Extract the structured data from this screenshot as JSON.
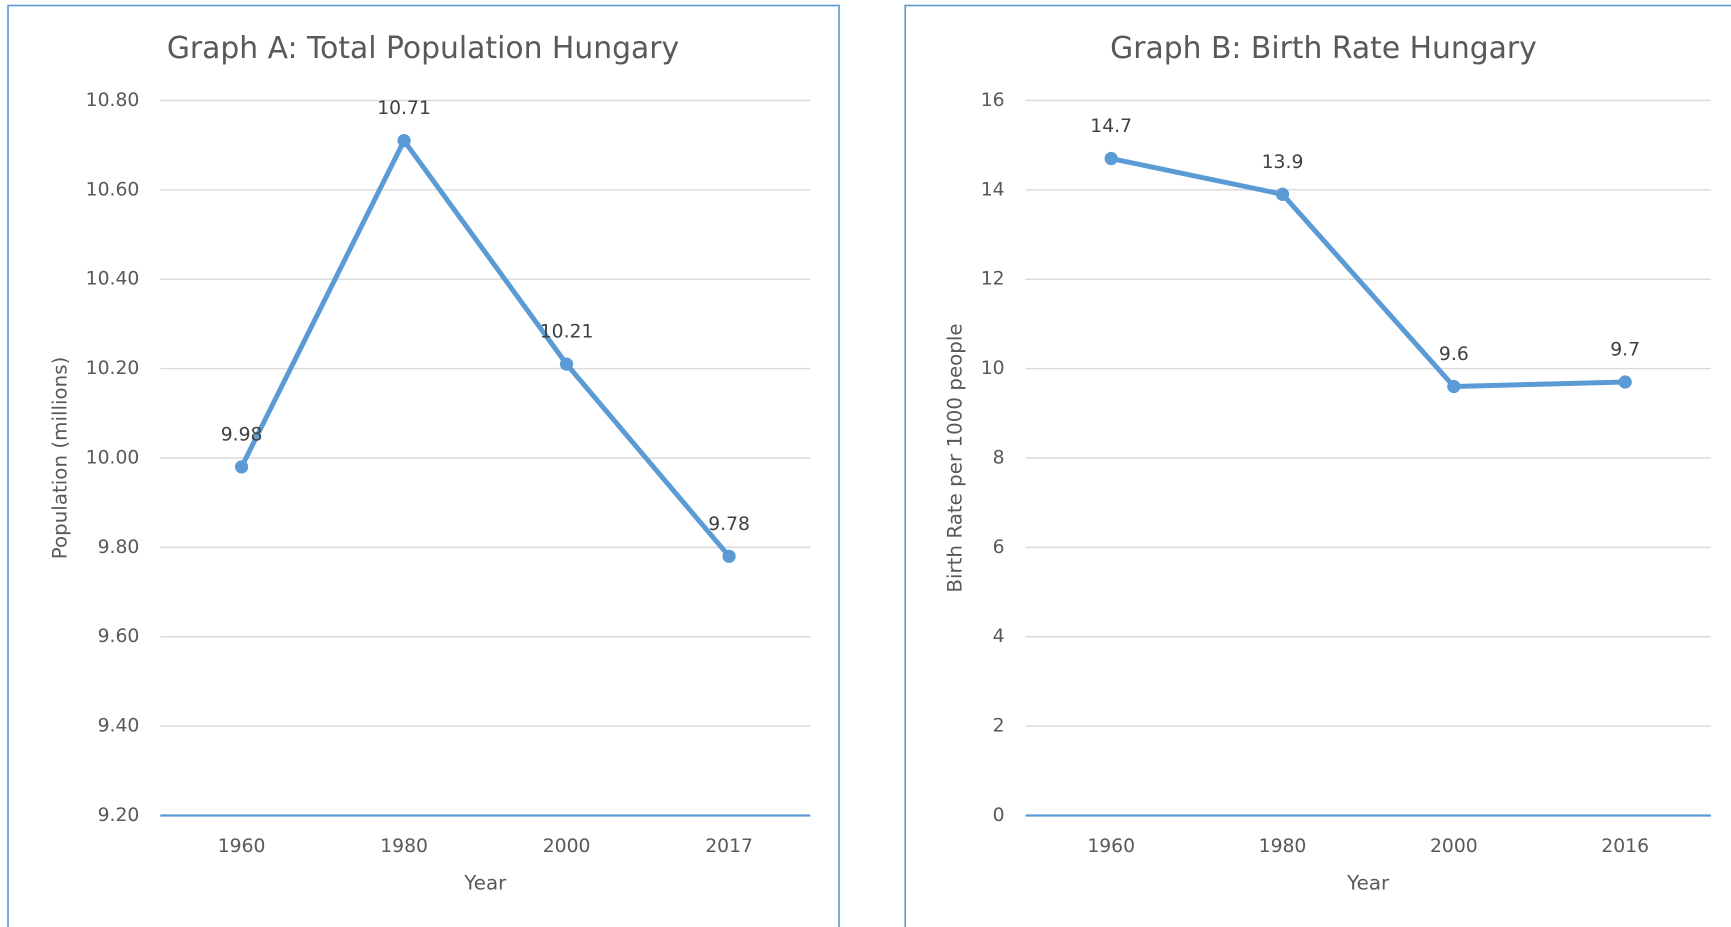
{
  "chart_data": [
    {
      "type": "line",
      "title": "Graph A: Total Population Hungary",
      "x_label": "Year",
      "y_label": "Population (millions)",
      "categories": [
        "1960",
        "1980",
        "2000",
        "2017"
      ],
      "values": [
        9.98,
        10.71,
        10.21,
        9.78
      ],
      "color": "#5b9bd5",
      "ylim": [
        9.2,
        10.8
      ],
      "yticks": [
        {
          "value": 9.2,
          "label": "9.20"
        },
        {
          "value": 9.4,
          "label": "9.40"
        },
        {
          "value": 9.6,
          "label": "9.60"
        },
        {
          "value": 9.8,
          "label": "9.80"
        },
        {
          "value": 10.0,
          "label": "10.00"
        },
        {
          "value": 10.2,
          "label": "10.20"
        },
        {
          "value": 10.4,
          "label": "10.40"
        },
        {
          "value": 10.6,
          "label": "10.60"
        },
        {
          "value": 10.8,
          "label": "10.80"
        }
      ],
      "grid": true
    },
    {
      "type": "line",
      "title": "Graph B: Birth Rate Hungary",
      "x_label": "Year",
      "y_label": "Birth Rate per 1000 people",
      "categories": [
        "1960",
        "1980",
        "2000",
        "2016"
      ],
      "values": [
        14.7,
        13.9,
        9.6,
        9.7
      ],
      "color": "#5b9bd5",
      "ylim": [
        0,
        16
      ],
      "yticks": [
        0,
        2,
        4,
        6,
        8,
        10,
        12,
        14,
        16
      ],
      "grid": true
    }
  ]
}
